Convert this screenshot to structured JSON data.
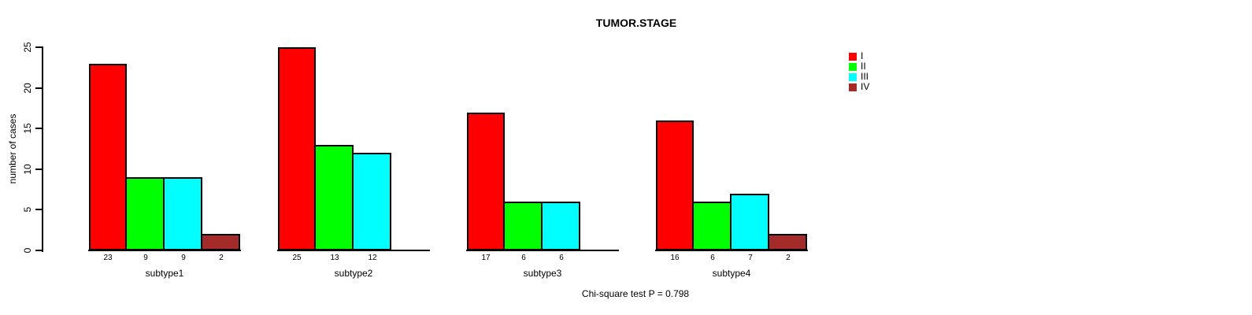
{
  "chart_data": {
    "type": "bar",
    "title": "TUMOR.STAGE",
    "ylabel": "number of cases",
    "xlabel": "",
    "categories": [
      "subtype1",
      "subtype2",
      "subtype3",
      "subtype4"
    ],
    "series": [
      {
        "name": "I",
        "color": "#FF0000",
        "values": [
          23,
          25,
          17,
          16
        ]
      },
      {
        "name": "II",
        "color": "#00FF00",
        "values": [
          9,
          13,
          6,
          6
        ]
      },
      {
        "name": "III",
        "color": "#00FFFF",
        "values": [
          9,
          12,
          6,
          7
        ]
      },
      {
        "name": "IV",
        "color": "#A52A2A",
        "values": [
          2,
          0,
          0,
          2
        ]
      }
    ],
    "yticks": [
      0,
      5,
      10,
      15,
      20,
      25
    ],
    "ylim": [
      0,
      25
    ],
    "grid": false,
    "bar_border_color": "#000000",
    "bar_value_labels_shown": true,
    "zero_value_labels_hidden": true,
    "legend_position": "right",
    "annotation": "Chi-square test P = 0.798",
    "background": "#FFFFFF",
    "text_color": "#000000"
  }
}
